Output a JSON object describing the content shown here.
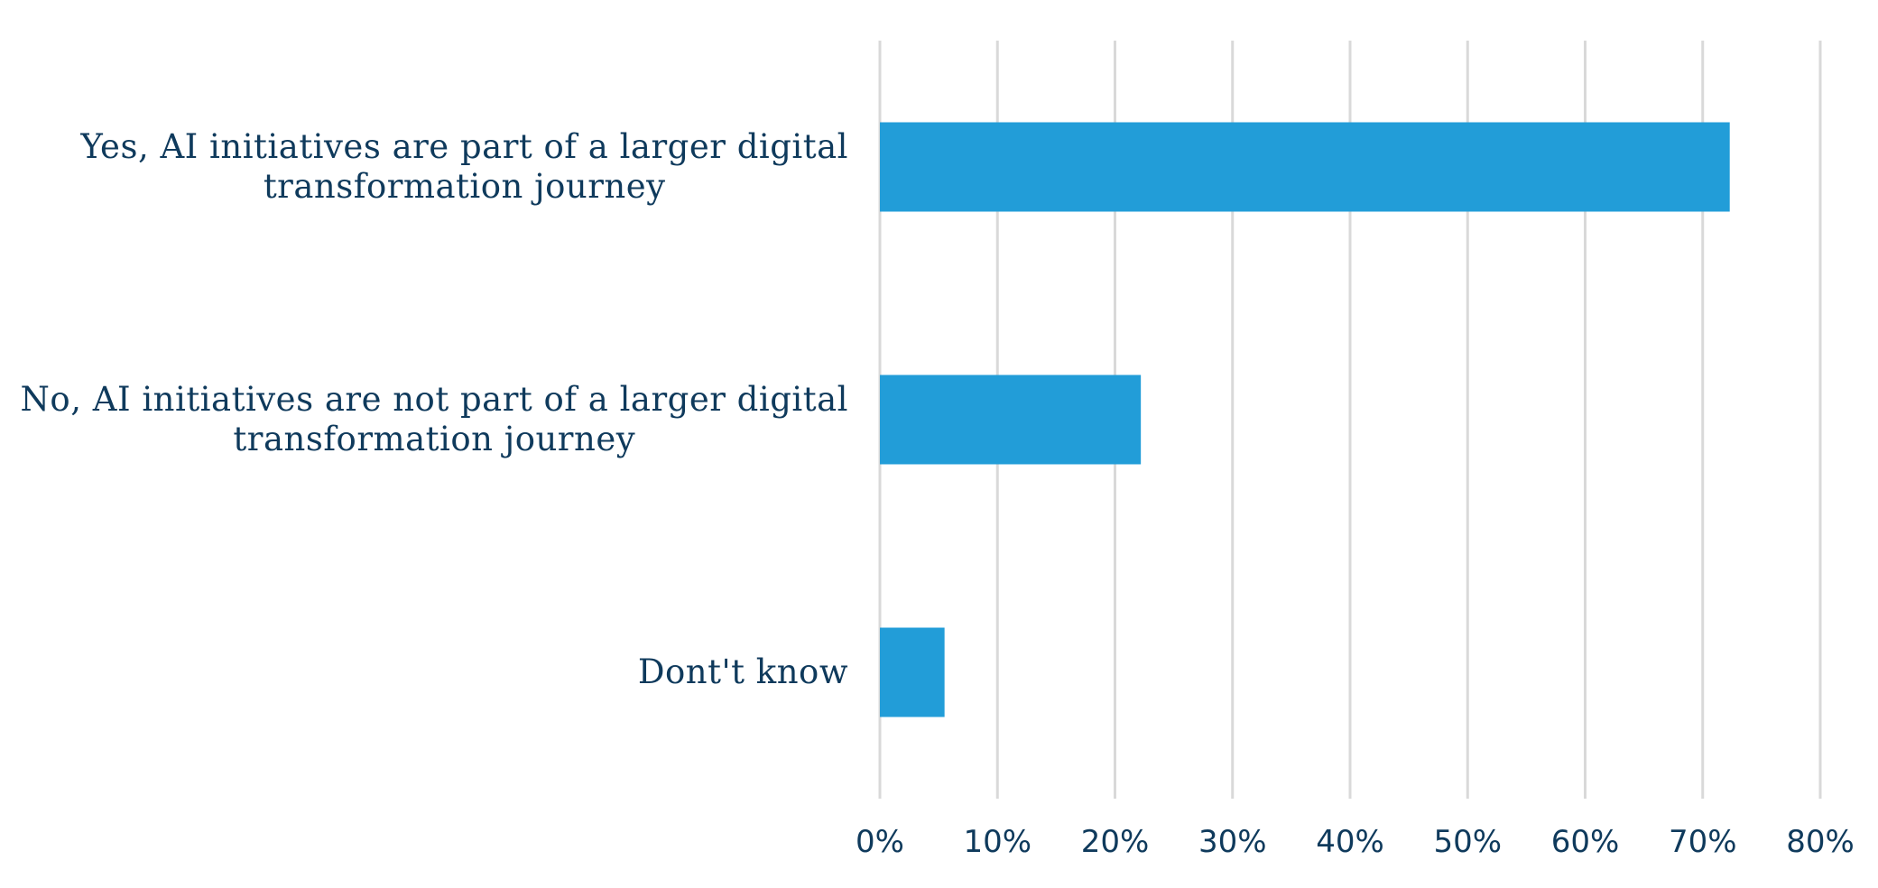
{
  "chart_data": {
    "type": "bar",
    "orientation": "horizontal",
    "categories": [
      [
        "Yes, AI initiatives are part of a larger digital",
        "transformation journey"
      ],
      [
        "No, AI initiatives are not part of a larger digital",
        "transformation journey"
      ],
      [
        "Dont't know"
      ]
    ],
    "values": [
      72.3,
      22.2,
      5.5
    ],
    "xlim": [
      0,
      80
    ],
    "xticks": [
      "0%",
      "10%",
      "20%",
      "30%",
      "40%",
      "50%",
      "60%",
      "70%",
      "80%"
    ],
    "grid": true,
    "bar_color": "#229dd8",
    "text_color": "#0f3a5c",
    "grid_color": "#d9d9d9"
  }
}
